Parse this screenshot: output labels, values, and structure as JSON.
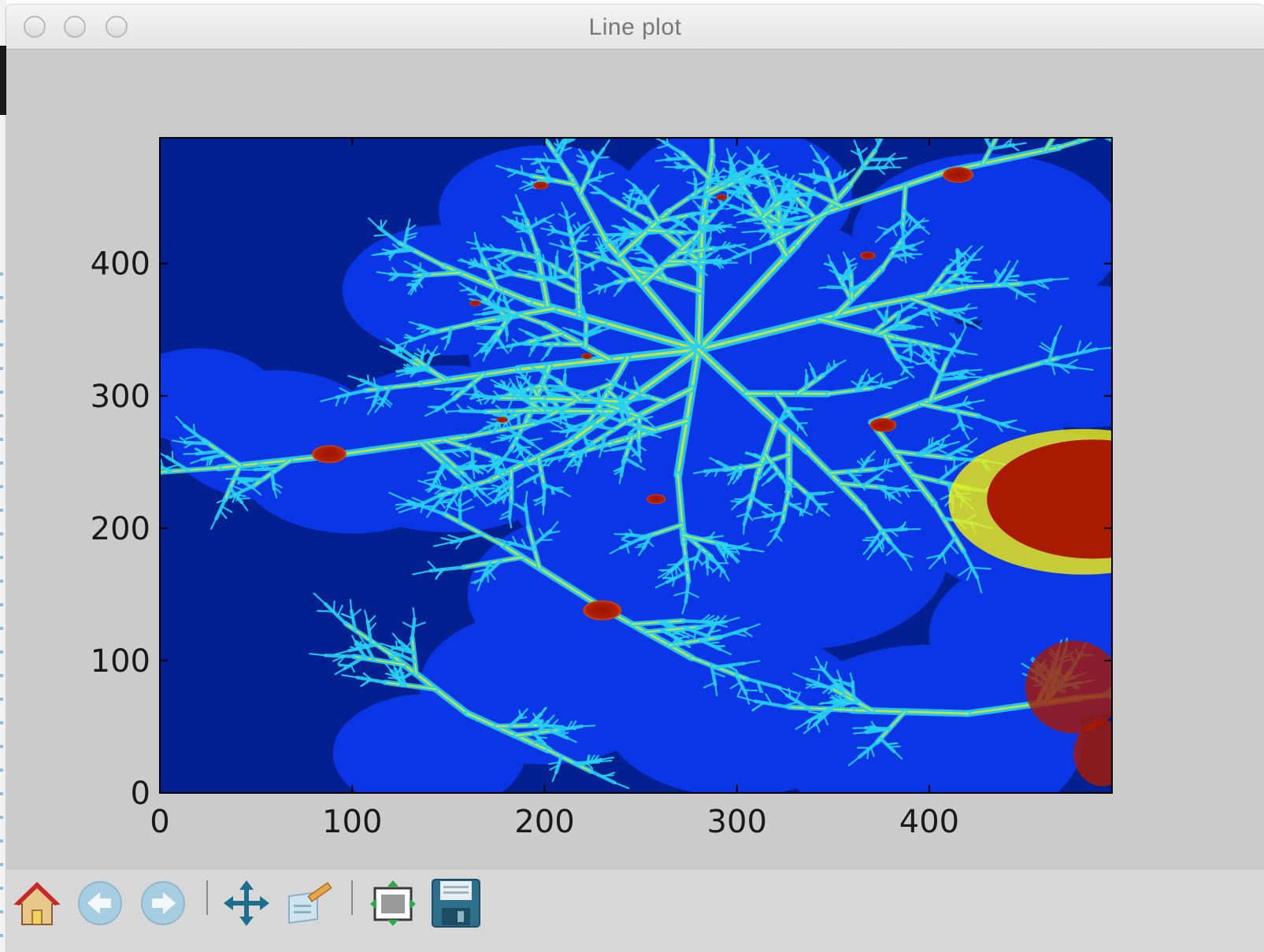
{
  "window": {
    "title": "Line plot"
  },
  "chart_data": {
    "type": "heatmap",
    "title": "",
    "xlabel": "",
    "ylabel": "",
    "xlim": [
      0,
      495
    ],
    "ylim": [
      0,
      495
    ],
    "xticks": [
      0,
      100,
      200,
      300,
      400
    ],
    "yticks": [
      0,
      100,
      200,
      300,
      400
    ],
    "colormap": "jet",
    "colors": {
      "background": "#02208f",
      "mid_blue": "#0a36e6",
      "cyan": "#27d2f2",
      "yellow": "#f4f30a",
      "red": "#a91a00"
    },
    "grid": false
  },
  "toolbar": {
    "items": [
      {
        "id": "home",
        "icon": "home-icon"
      },
      {
        "id": "back",
        "icon": "back-arrow-icon"
      },
      {
        "id": "forward",
        "icon": "forward-arrow-icon"
      },
      {
        "id": "pan",
        "icon": "pan-move-icon"
      },
      {
        "id": "zoom",
        "icon": "zoom-rect-icon"
      },
      {
        "id": "subplots",
        "icon": "configure-subplots-icon"
      },
      {
        "id": "save",
        "icon": "save-floppy-icon"
      }
    ]
  }
}
